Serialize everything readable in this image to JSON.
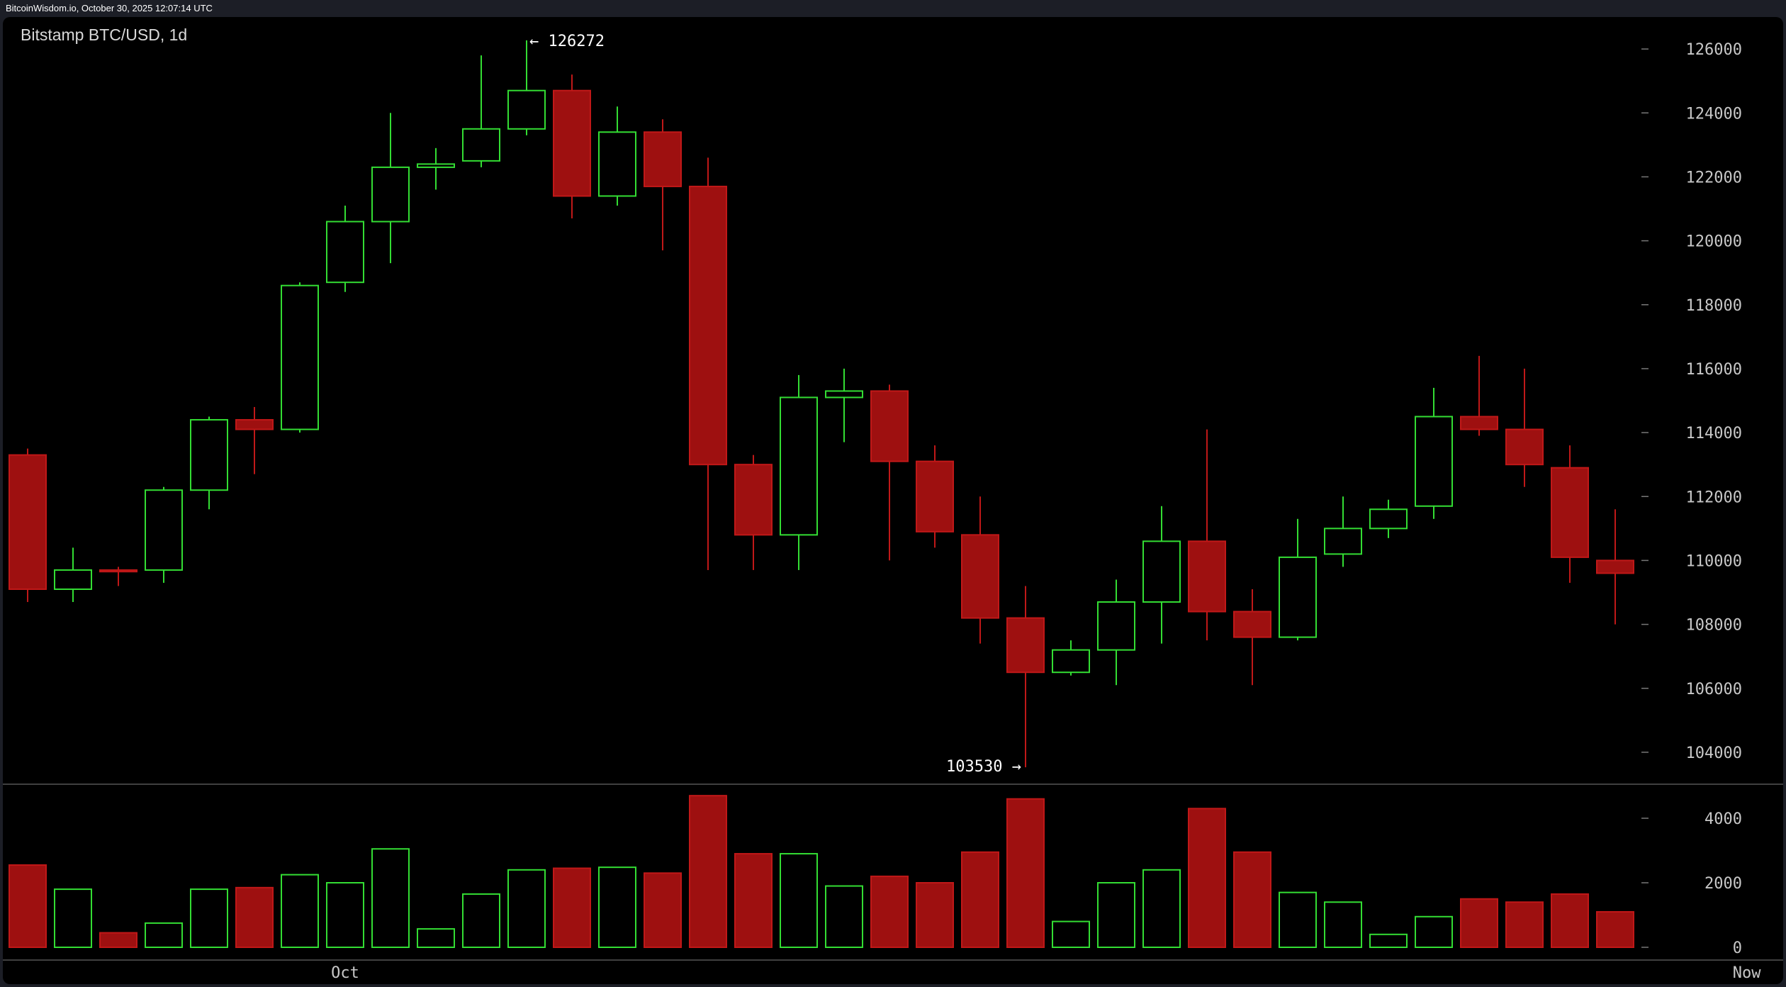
{
  "header": {
    "text": "BitcoinWisdom.io, October 30, 2025 12:07:14 UTC"
  },
  "chart_data": {
    "type": "candlestick",
    "title": "Bitstamp BTC/USD, 1d",
    "colors": {
      "up": "#33dd33",
      "down": "#9e1010",
      "down_stroke": "#c01818",
      "background": "#000000"
    },
    "price_axis": {
      "min": 103000,
      "max": 127000,
      "ticks": [
        104000,
        106000,
        108000,
        110000,
        112000,
        114000,
        116000,
        118000,
        120000,
        122000,
        124000,
        126000
      ]
    },
    "volume_axis": {
      "min": 0,
      "max": 5000,
      "ticks": [
        0,
        2000,
        4000
      ]
    },
    "x_labels": [
      {
        "label": "Oct",
        "index": 7
      },
      {
        "label": "Now",
        "index": 37.9
      }
    ],
    "annotations": [
      {
        "text": "← 126272",
        "index": 11,
        "price": 126272,
        "side": "right"
      },
      {
        "text": "103530 →",
        "index": 22,
        "price": 103530,
        "side": "left"
      }
    ],
    "candles": [
      {
        "o": 113300,
        "h": 113500,
        "l": 108700,
        "c": 109100,
        "v": 2550
      },
      {
        "o": 109100,
        "h": 110400,
        "l": 108700,
        "c": 109700,
        "v": 1800
      },
      {
        "o": 109700,
        "h": 109800,
        "l": 109200,
        "c": 109650,
        "v": 450
      },
      {
        "o": 109700,
        "h": 112300,
        "l": 109300,
        "c": 112200,
        "v": 750
      },
      {
        "o": 112200,
        "h": 114500,
        "l": 111600,
        "c": 114400,
        "v": 1800
      },
      {
        "o": 114400,
        "h": 114800,
        "l": 112700,
        "c": 114100,
        "v": 1850
      },
      {
        "o": 114100,
        "h": 118700,
        "l": 114000,
        "c": 118600,
        "v": 2250
      },
      {
        "o": 118700,
        "h": 121100,
        "l": 118400,
        "c": 120600,
        "v": 2000
      },
      {
        "o": 120600,
        "h": 124000,
        "l": 119300,
        "c": 122300,
        "v": 3050
      },
      {
        "o": 122300,
        "h": 122900,
        "l": 121600,
        "c": 122400,
        "v": 570
      },
      {
        "o": 122500,
        "h": 125800,
        "l": 122300,
        "c": 123500,
        "v": 1650
      },
      {
        "o": 123500,
        "h": 126272,
        "l": 123300,
        "c": 124700,
        "v": 2400
      },
      {
        "o": 124700,
        "h": 125200,
        "l": 120700,
        "c": 121400,
        "v": 2450
      },
      {
        "o": 121400,
        "h": 124200,
        "l": 121100,
        "c": 123400,
        "v": 2480
      },
      {
        "o": 123400,
        "h": 123800,
        "l": 119700,
        "c": 121700,
        "v": 2300
      },
      {
        "o": 121700,
        "h": 122600,
        "l": 109700,
        "c": 113000,
        "v": 4700
      },
      {
        "o": 113000,
        "h": 113300,
        "l": 109700,
        "c": 110800,
        "v": 2900
      },
      {
        "o": 110800,
        "h": 115800,
        "l": 109700,
        "c": 115100,
        "v": 2900
      },
      {
        "o": 115100,
        "h": 116000,
        "l": 113700,
        "c": 115300,
        "v": 1900
      },
      {
        "o": 115300,
        "h": 115500,
        "l": 110000,
        "c": 113100,
        "v": 2200
      },
      {
        "o": 113100,
        "h": 113600,
        "l": 110400,
        "c": 110900,
        "v": 2000
      },
      {
        "o": 110800,
        "h": 112000,
        "l": 107400,
        "c": 108200,
        "v": 2950
      },
      {
        "o": 108200,
        "h": 109200,
        "l": 103530,
        "c": 106500,
        "v": 4600
      },
      {
        "o": 106500,
        "h": 107500,
        "l": 106400,
        "c": 107200,
        "v": 800
      },
      {
        "o": 107200,
        "h": 109400,
        "l": 106100,
        "c": 108700,
        "v": 2000
      },
      {
        "o": 108700,
        "h": 111700,
        "l": 107400,
        "c": 110600,
        "v": 2400
      },
      {
        "o": 110600,
        "h": 114100,
        "l": 107500,
        "c": 108400,
        "v": 4300
      },
      {
        "o": 108400,
        "h": 109100,
        "l": 106100,
        "c": 107600,
        "v": 2950
      },
      {
        "o": 107600,
        "h": 111300,
        "l": 107500,
        "c": 110100,
        "v": 1700
      },
      {
        "o": 110200,
        "h": 112000,
        "l": 109800,
        "c": 111000,
        "v": 1400
      },
      {
        "o": 111000,
        "h": 111900,
        "l": 110700,
        "c": 111600,
        "v": 400
      },
      {
        "o": 111700,
        "h": 115400,
        "l": 111300,
        "c": 114500,
        "v": 950
      },
      {
        "o": 114500,
        "h": 116400,
        "l": 113900,
        "c": 114100,
        "v": 1500
      },
      {
        "o": 114100,
        "h": 116000,
        "l": 112300,
        "c": 113000,
        "v": 1400
      },
      {
        "o": 112900,
        "h": 113600,
        "l": 109300,
        "c": 110100,
        "v": 1650
      },
      {
        "o": 110000,
        "h": 111600,
        "l": 108000,
        "c": 109600,
        "v": 1100
      }
    ]
  }
}
